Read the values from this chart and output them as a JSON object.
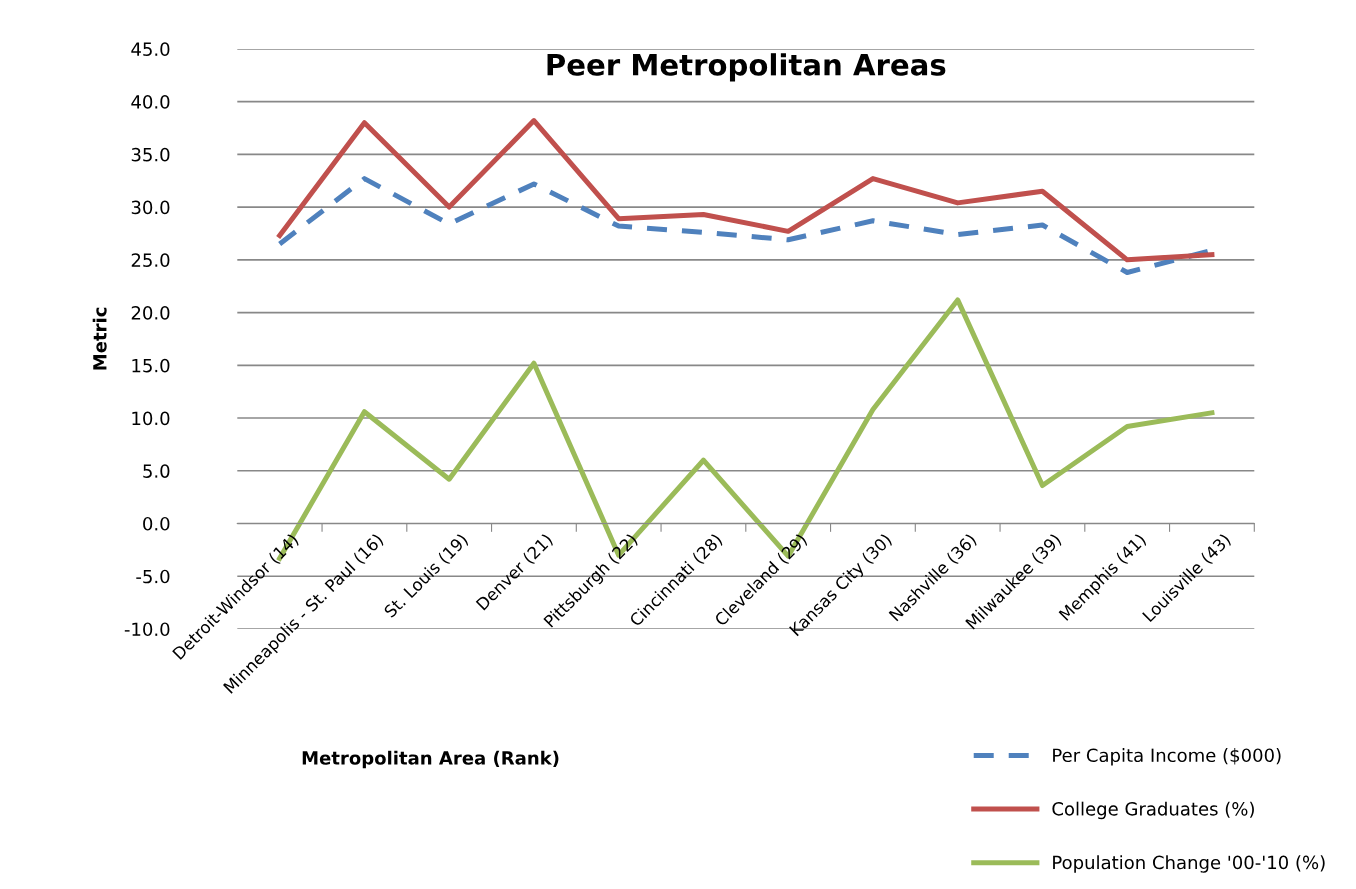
{
  "chart_data": {
    "type": "line",
    "title": "Peer Metropolitan Areas",
    "xlabel": "Metropolitan Area (Rank)",
    "ylabel": "Metric",
    "categories": [
      "Detroit-Windsor (14)",
      "Minneapolis - St. Paul (16)",
      "St. Louis (19)",
      "Denver (21)",
      "Pittsburgh (22)",
      "Cincinnati (28)",
      "Cleveland (29)",
      "Kansas City (30)",
      "Nashville (36)",
      "Milwaukee (39)",
      "Memphis (41)",
      "Louisville (43)"
    ],
    "series": [
      {
        "name": "Per Capita Income ($000)",
        "color": "#4f81bd",
        "line_style": "dashed",
        "values": [
          26.5,
          32.7,
          28.4,
          32.2,
          28.2,
          27.6,
          26.9,
          28.7,
          27.4,
          28.3,
          23.8,
          25.9
        ]
      },
      {
        "name": "College Graduates (%)",
        "color": "#c0504d",
        "line_style": "solid",
        "values": [
          27.3,
          38.0,
          30.0,
          38.2,
          28.9,
          29.3,
          27.7,
          32.7,
          30.4,
          31.5,
          25.0,
          25.5
        ]
      },
      {
        "name": "Population Change '00-'10 (%)",
        "color": "#9bbb59",
        "line_style": "solid",
        "values": [
          -3.3,
          10.6,
          4.2,
          15.2,
          -3.0,
          6.0,
          -3.1,
          10.8,
          21.2,
          3.6,
          9.2,
          10.5
        ]
      }
    ],
    "ylim": [
      -10,
      45
    ],
    "yticks": [
      {
        "value": -10,
        "label": "-10.0"
      },
      {
        "value": -5,
        "label": "-5.0"
      },
      {
        "value": 0,
        "label": "0.0"
      },
      {
        "value": 5,
        "label": "5.0"
      },
      {
        "value": 10,
        "label": "10.0"
      },
      {
        "value": 15,
        "label": "15.0"
      },
      {
        "value": 20,
        "label": "20.0"
      },
      {
        "value": 25,
        "label": "25.0"
      },
      {
        "value": 30,
        "label": "30.0"
      },
      {
        "value": 35,
        "label": "35.0"
      },
      {
        "value": 40,
        "label": "40.0"
      },
      {
        "value": 45,
        "label": "45.0"
      }
    ],
    "grid": "y",
    "legend": "bottom right",
    "marker": "none"
  }
}
